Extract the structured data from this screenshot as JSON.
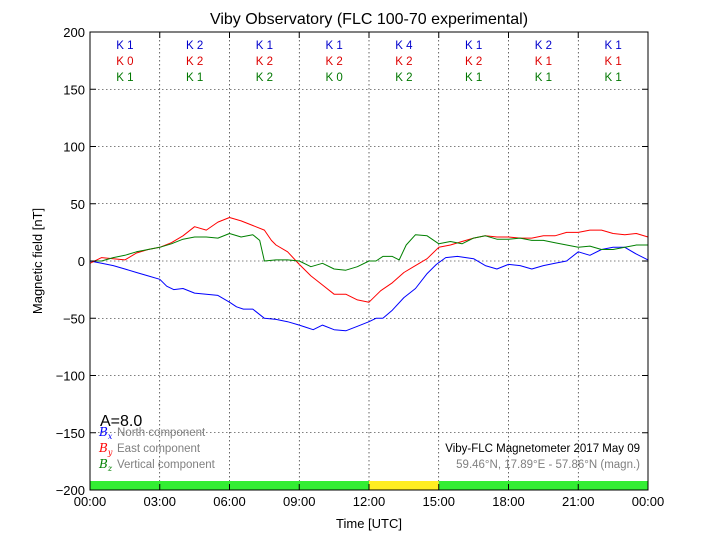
{
  "chart_data": {
    "type": "line",
    "title": "Viby Observatory (FLC 100-70 experimental)",
    "xlabel": "Time [UTC]",
    "ylabel": "Magnetic field [nT]",
    "xlim": [
      0,
      24
    ],
    "ylim": [
      -200,
      200
    ],
    "x_ticks": [
      "00:00",
      "03:00",
      "06:00",
      "09:00",
      "12:00",
      "15:00",
      "18:00",
      "21:00",
      "00:00"
    ],
    "y_ticks": [
      "200",
      "150",
      "100",
      "50",
      "0",
      "−50",
      "−100",
      "−150",
      "−200"
    ],
    "grid": true,
    "k_indices": {
      "rows": [
        {
          "name": "K",
          "color": "#0000cc",
          "values": [
            "K 1",
            "K 2",
            "K 1",
            "K 1",
            "K 4",
            "K 1",
            "K 2",
            "K 1"
          ]
        },
        {
          "name": "K",
          "color": "#dd0000",
          "values": [
            "K 0",
            "K 2",
            "K 2",
            "K 2",
            "K 2",
            "K 2",
            "K 1",
            "K 1"
          ]
        },
        {
          "name": "K",
          "color": "#007700",
          "values": [
            "K 1",
            "K 1",
            "K 2",
            "K 0",
            "K 2",
            "K 1",
            "K 1",
            "K 1"
          ]
        }
      ]
    },
    "a_index": "A=8.0",
    "legend": {
      "placement": "bottom-left",
      "entries": [
        {
          "symbol": "B",
          "sub": "x",
          "label": "North component",
          "color": "#0000ff"
        },
        {
          "symbol": "B",
          "sub": "y",
          "label": "East component",
          "color": "#ff0000"
        },
        {
          "symbol": "B",
          "sub": "z",
          "label": "Vertical component",
          "color": "#008000"
        }
      ]
    },
    "info": {
      "line1": "Viby-FLC Magnetometer 2017 May 09",
      "line2": "59.46°N, 17.89°E - 57.86°N (magn.)"
    },
    "activity_bar": [
      {
        "from": 0,
        "to": 12,
        "color": "#33ee33"
      },
      {
        "from": 12,
        "to": 15,
        "color": "#ffee22"
      },
      {
        "from": 15,
        "to": 24,
        "color": "#33ee33"
      }
    ],
    "series": [
      {
        "name": "B_x North component",
        "color": "#0000ff",
        "x": [
          0,
          0.5,
          1,
          1.5,
          2,
          2.5,
          3,
          3.3,
          3.6,
          4,
          4.5,
          5,
          5.5,
          6,
          6.3,
          6.6,
          7,
          7.5,
          8,
          8.5,
          9,
          9.3,
          9.6,
          10,
          10.5,
          11,
          11.5,
          12,
          12.3,
          12.6,
          13,
          13.5,
          14,
          14.5,
          14.9,
          15.3,
          15.8,
          16.5,
          17,
          17.5,
          18,
          18.5,
          19,
          19.5,
          20,
          20.5,
          21,
          21.5,
          22,
          22.5,
          23,
          23.5,
          24
        ],
        "y": [
          0,
          -2,
          -4,
          -7,
          -10,
          -13,
          -16,
          -22,
          -25,
          -24,
          -28,
          -29,
          -30,
          -36,
          -40,
          -42,
          -42,
          -50,
          -51,
          -53,
          -56,
          -58,
          -60,
          -56,
          -60,
          -61,
          -57,
          -53,
          -50,
          -50,
          -43,
          -32,
          -24,
          -11,
          -3,
          3,
          4,
          2,
          -4,
          -7,
          -3,
          -4,
          -7,
          -4,
          -2,
          0,
          8,
          5,
          10,
          12,
          12,
          6,
          1
        ]
      },
      {
        "name": "B_y East component",
        "color": "#ff0000",
        "x": [
          0,
          0.5,
          1,
          1.5,
          2,
          2.5,
          3,
          3.5,
          4,
          4.5,
          5,
          5.5,
          6,
          6.5,
          7,
          7.5,
          7.8,
          8,
          8.5,
          9,
          9.5,
          10,
          10.5,
          11,
          11.5,
          12,
          12.5,
          13,
          13.5,
          14,
          14.5,
          15,
          15.5,
          16,
          16.5,
          17,
          17.5,
          18,
          18.5,
          19,
          19.5,
          20,
          20.5,
          21,
          21.5,
          22,
          22.5,
          23,
          23.5,
          24
        ],
        "y": [
          -2,
          3,
          2,
          1,
          7,
          10,
          12,
          16,
          22,
          30,
          27,
          34,
          38,
          35,
          31,
          27,
          18,
          14,
          8,
          -3,
          -13,
          -21,
          -29,
          -29,
          -34,
          -36,
          -26,
          -19,
          -10,
          -4,
          2,
          12,
          14,
          17,
          20,
          22,
          21,
          21,
          20,
          20,
          22,
          22,
          25,
          25,
          27,
          27,
          24,
          23,
          24,
          21
        ]
      },
      {
        "name": "B_z Vertical component",
        "color": "#008000",
        "x": [
          0,
          0.5,
          1,
          1.5,
          2,
          2.5,
          3,
          3.5,
          4,
          4.5,
          5,
          5.5,
          6,
          6.5,
          7,
          7.3,
          7.5,
          8,
          8.5,
          9,
          9.5,
          10,
          10.5,
          11,
          11.5,
          12,
          12.3,
          12.6,
          13,
          13.3,
          13.6,
          14,
          14.5,
          15,
          15.5,
          16,
          16.5,
          17,
          17.5,
          18,
          18.5,
          19,
          19.5,
          20,
          20.5,
          21,
          21.5,
          22,
          22.5,
          23,
          23.5,
          24
        ],
        "y": [
          0,
          0,
          3,
          5,
          8,
          10,
          12,
          15,
          19,
          21,
          21,
          20,
          24,
          21,
          23,
          18,
          0,
          1,
          1,
          0,
          -5,
          -2,
          -7,
          -8,
          -5,
          0,
          0,
          4,
          4,
          1,
          14,
          23,
          22,
          15,
          17,
          15,
          20,
          22,
          19,
          19,
          20,
          18,
          18,
          16,
          14,
          12,
          13,
          10,
          10,
          12,
          14,
          14
        ]
      }
    ]
  }
}
